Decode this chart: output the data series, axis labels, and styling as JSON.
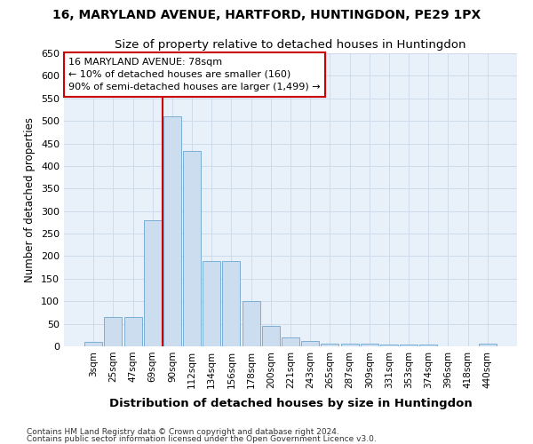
{
  "title": "16, MARYLAND AVENUE, HARTFORD, HUNTINGDON, PE29 1PX",
  "subtitle": "Size of property relative to detached houses in Huntingdon",
  "xlabel": "Distribution of detached houses by size in Huntingdon",
  "ylabel": "Number of detached properties",
  "categories": [
    "3sqm",
    "25sqm",
    "47sqm",
    "69sqm",
    "90sqm",
    "112sqm",
    "134sqm",
    "156sqm",
    "178sqm",
    "200sqm",
    "221sqm",
    "243sqm",
    "265sqm",
    "287sqm",
    "309sqm",
    "331sqm",
    "353sqm",
    "374sqm",
    "396sqm",
    "418sqm",
    "440sqm"
  ],
  "values": [
    10,
    65,
    65,
    280,
    510,
    433,
    190,
    190,
    101,
    46,
    20,
    12,
    5,
    5,
    5,
    3,
    3,
    3,
    0,
    0,
    5
  ],
  "bar_color": "#cdddf0",
  "bar_edge_color": "#7aafd4",
  "vline_color": "#cc0000",
  "annotation_text": "16 MARYLAND AVENUE: 78sqm\n← 10% of detached houses are smaller (160)\n90% of semi-detached houses are larger (1,499) →",
  "annotation_box_color": "#ffffff",
  "annotation_box_edge": "#cc0000",
  "grid_color": "#c8d8e8",
  "background_color": "#e8f0fa",
  "footer1": "Contains HM Land Registry data © Crown copyright and database right 2024.",
  "footer2": "Contains public sector information licensed under the Open Government Licence v3.0.",
  "ylim": [
    0,
    650
  ],
  "yticks": [
    0,
    50,
    100,
    150,
    200,
    250,
    300,
    350,
    400,
    450,
    500,
    550,
    600,
    650
  ]
}
